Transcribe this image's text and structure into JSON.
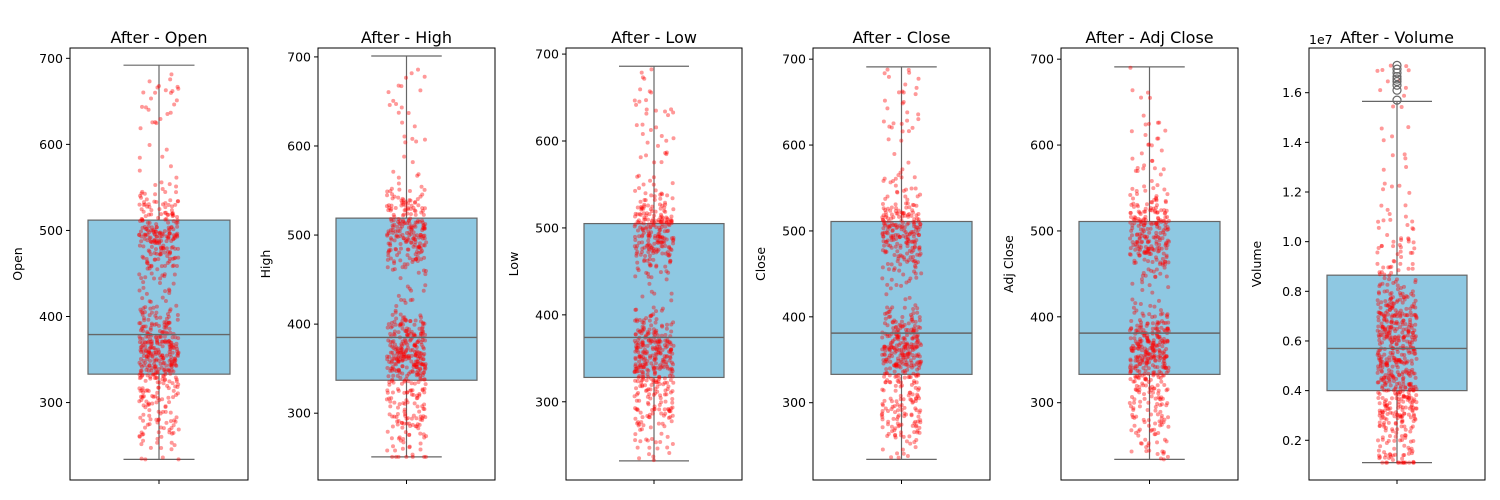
{
  "colors": {
    "box_fill": "#8ec8e2",
    "box_edge": "#666666",
    "points": "#ff0000",
    "flier_edge": "#666666"
  },
  "points_per_panel": 620,
  "chart_data": [
    {
      "type": "box",
      "title": "After - Open",
      "ylabel": "Open",
      "ylim": [
        210,
        712
      ],
      "yticks": [
        300,
        400,
        500,
        600,
        700
      ],
      "ytick_labels": [
        "300",
        "400",
        "500",
        "600",
        "700"
      ],
      "offset_label": "",
      "stats": {
        "whisker_low": 234,
        "q1": 333,
        "median": 379,
        "q3": 512,
        "whisker_high": 692
      },
      "outliers": [],
      "strip": {
        "count": 620,
        "min": 234,
        "max": 692,
        "clusters": [
          {
            "center": 360,
            "spread": 25,
            "weight": 0.4
          },
          {
            "center": 500,
            "spread": 25,
            "weight": 0.3
          },
          {
            "center": 290,
            "spread": 25,
            "weight": 0.12
          }
        ]
      }
    },
    {
      "type": "box",
      "title": "After - High",
      "ylabel": "High",
      "ylim": [
        225,
        710
      ],
      "yticks": [
        300,
        400,
        500,
        600,
        700
      ],
      "ytick_labels": [
        "300",
        "400",
        "500",
        "600",
        "700"
      ],
      "offset_label": "",
      "stats": {
        "whisker_low": 251,
        "q1": 337,
        "median": 385,
        "q3": 519,
        "whisker_high": 701
      },
      "outliers": [],
      "strip": {
        "count": 620,
        "min": 251,
        "max": 701,
        "clusters": [
          {
            "center": 365,
            "spread": 25,
            "weight": 0.4
          },
          {
            "center": 505,
            "spread": 25,
            "weight": 0.3
          },
          {
            "center": 295,
            "spread": 25,
            "weight": 0.12
          }
        ]
      }
    },
    {
      "type": "box",
      "title": "After - Low",
      "ylabel": "Low",
      "ylim": [
        210,
        707
      ],
      "yticks": [
        300,
        400,
        500,
        600,
        700
      ],
      "ytick_labels": [
        "300",
        "400",
        "500",
        "600",
        "700"
      ],
      "offset_label": "",
      "stats": {
        "whisker_low": 232,
        "q1": 328,
        "median": 374,
        "q3": 505,
        "whisker_high": 686
      },
      "outliers": [],
      "strip": {
        "count": 620,
        "min": 232,
        "max": 686,
        "clusters": [
          {
            "center": 355,
            "spread": 25,
            "weight": 0.4
          },
          {
            "center": 495,
            "spread": 25,
            "weight": 0.3
          },
          {
            "center": 285,
            "spread": 25,
            "weight": 0.12
          }
        ]
      }
    },
    {
      "type": "box",
      "title": "After - Close",
      "ylabel": "Close",
      "ylim": [
        210,
        713
      ],
      "yticks": [
        300,
        400,
        500,
        600,
        700
      ],
      "ytick_labels": [
        "300",
        "400",
        "500",
        "600",
        "700"
      ],
      "offset_label": "",
      "stats": {
        "whisker_low": 234,
        "q1": 333,
        "median": 381,
        "q3": 511,
        "whisker_high": 691
      },
      "outliers": [],
      "strip": {
        "count": 620,
        "min": 234,
        "max": 691,
        "clusters": [
          {
            "center": 360,
            "spread": 25,
            "weight": 0.4
          },
          {
            "center": 500,
            "spread": 25,
            "weight": 0.3
          },
          {
            "center": 290,
            "spread": 25,
            "weight": 0.12
          }
        ]
      }
    },
    {
      "type": "box",
      "title": "After - Adj Close",
      "ylabel": "Adj Close",
      "ylim": [
        210,
        713
      ],
      "yticks": [
        300,
        400,
        500,
        600,
        700
      ],
      "ytick_labels": [
        "300",
        "400",
        "500",
        "600",
        "700"
      ],
      "offset_label": "",
      "stats": {
        "whisker_low": 234,
        "q1": 333,
        "median": 381,
        "q3": 511,
        "whisker_high": 691
      },
      "outliers": [],
      "strip": {
        "count": 620,
        "min": 234,
        "max": 691,
        "clusters": [
          {
            "center": 360,
            "spread": 25,
            "weight": 0.4
          },
          {
            "center": 500,
            "spread": 25,
            "weight": 0.3
          },
          {
            "center": 290,
            "spread": 25,
            "weight": 0.12
          }
        ]
      }
    },
    {
      "type": "box",
      "title": "After - Volume",
      "ylabel": "Volume",
      "ylim": [
        0.04,
        1.78
      ],
      "yticks": [
        0.2,
        0.4,
        0.6,
        0.8,
        1.0,
        1.2,
        1.4,
        1.6
      ],
      "ytick_labels": [
        "0.2",
        "0.4",
        "0.6",
        "0.8",
        "1.0",
        "1.2",
        "1.4",
        "1.6"
      ],
      "offset_label": "1e7",
      "stats": {
        "whisker_low": 0.11,
        "q1": 0.4,
        "median": 0.57,
        "q3": 0.865,
        "whisker_high": 1.565
      },
      "outliers": [
        1.57,
        1.61,
        1.63,
        1.645,
        1.655,
        1.665,
        1.68,
        1.695,
        1.71
      ],
      "strip": {
        "count": 620,
        "min": 0.11,
        "max": 1.72,
        "clusters": [
          {
            "center": 0.45,
            "spread": 0.2,
            "weight": 0.6
          },
          {
            "center": 0.7,
            "spread": 0.2,
            "weight": 0.25
          }
        ]
      }
    }
  ]
}
